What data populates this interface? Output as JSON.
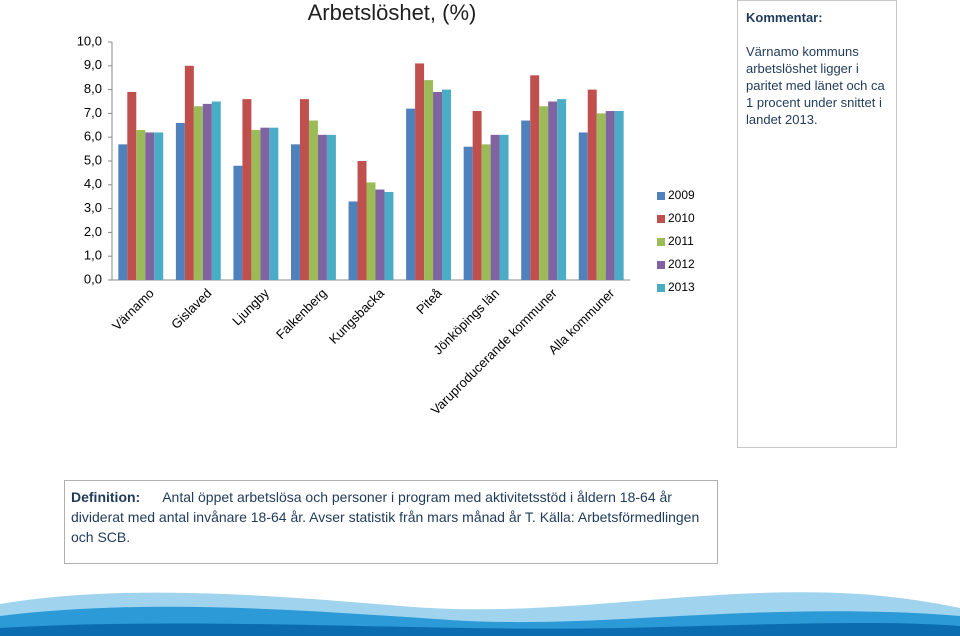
{
  "chart_data": {
    "type": "bar",
    "title": "Arbetslöshet, (%)",
    "categories": [
      "Värnamo",
      "Gislaved",
      "Ljungby",
      "Falkenberg",
      "Kungsbacka",
      "Piteå",
      "Jönköpings län",
      "Varuproducerande kommuner",
      "Alla kommuner"
    ],
    "series": [
      {
        "name": "2009",
        "color": "#4f81bd",
        "values": [
          5.7,
          6.6,
          4.8,
          5.7,
          3.3,
          7.2,
          5.6,
          6.7,
          6.2
        ]
      },
      {
        "name": "2010",
        "color": "#c0504d",
        "values": [
          7.9,
          9.0,
          7.6,
          7.6,
          5.0,
          9.1,
          7.1,
          8.6,
          8.0
        ]
      },
      {
        "name": "2011",
        "color": "#9bbb59",
        "values": [
          6.3,
          7.3,
          6.3,
          6.7,
          4.1,
          8.4,
          5.7,
          7.3,
          7.0
        ]
      },
      {
        "name": "2012",
        "color": "#8064a2",
        "values": [
          6.2,
          7.4,
          6.4,
          6.1,
          3.8,
          7.9,
          6.1,
          7.5,
          7.1
        ]
      },
      {
        "name": "2013",
        "color": "#4bacc6",
        "values": [
          6.2,
          7.5,
          6.4,
          6.1,
          3.7,
          8.0,
          6.1,
          7.6,
          7.1
        ]
      }
    ],
    "ylim": [
      0,
      10
    ],
    "yticks": [
      {
        "value": 0,
        "label": "0,0"
      },
      {
        "value": 1,
        "label": "1,0"
      },
      {
        "value": 2,
        "label": "2,0"
      },
      {
        "value": 3,
        "label": "3,0"
      },
      {
        "value": 4,
        "label": "4,0"
      },
      {
        "value": 5,
        "label": "5,0"
      },
      {
        "value": 6,
        "label": "6,0"
      },
      {
        "value": 7,
        "label": "7,0"
      },
      {
        "value": 8,
        "label": "8,0"
      },
      {
        "value": 9,
        "label": "9,0"
      },
      {
        "value": 10,
        "label": "10,0"
      }
    ],
    "legend": "right"
  },
  "comment": {
    "title": "Kommentar:",
    "text": "Värnamo kommuns arbetslöshet ligger i paritet med länet och ca 1 procent under snittet i landet 2013."
  },
  "definition": {
    "label": "Definition:",
    "text": "Antal öppet arbetslösa och personer i program med aktivitetsstöd i åldern 18-64 år dividerat med antal invånare 18-64 år. Avser statistik från mars månad år T. Källa: Arbetsförmedlingen och SCB."
  }
}
